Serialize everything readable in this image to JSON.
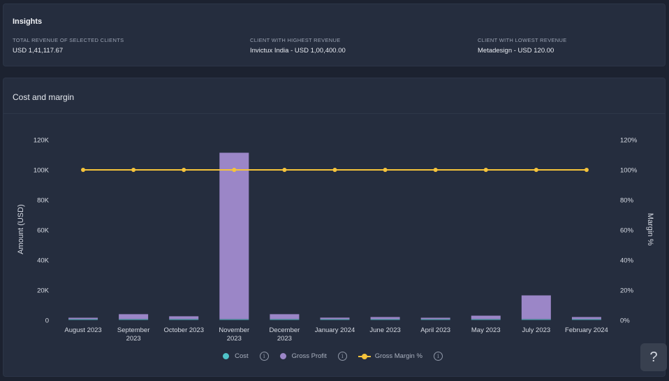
{
  "insights": {
    "title": "Insights",
    "metrics": [
      {
        "label": "TOTAL REVENUE OF SELECTED CLIENTS",
        "value": "USD 1,41,117.67"
      },
      {
        "label": "CLIENT WITH HIGHEST REVENUE",
        "value": "Invictux India - USD 1,00,400.00"
      },
      {
        "label": "CLIENT WITH LOWEST REVENUE",
        "value": "Metadesign - USD 120.00"
      }
    ]
  },
  "chart_card": {
    "title": "Cost and margin"
  },
  "legend": {
    "items": [
      {
        "label": "Cost",
        "icon": "circle",
        "color": "#4fc3c9"
      },
      {
        "label": "Gross Profit",
        "icon": "circle",
        "color": "#9b86c7"
      },
      {
        "label": "Gross Margin %",
        "icon": "line-dot",
        "color": "#f5c33b"
      }
    ],
    "info_symbol": "i"
  },
  "help_button": {
    "label": "?"
  },
  "chart_data": {
    "type": "bar",
    "title": "Cost and margin",
    "categories": [
      [
        "August 2023"
      ],
      [
        "September",
        "2023"
      ],
      [
        "October 2023"
      ],
      [
        "November",
        "2023"
      ],
      [
        "December",
        "2023"
      ],
      [
        "January 2024"
      ],
      [
        "June 2023"
      ],
      [
        "April 2023"
      ],
      [
        "May 2023"
      ],
      [
        "July 2023"
      ],
      [
        "February 2024"
      ]
    ],
    "category_names": [
      "August 2023",
      "September 2023",
      "October 2023",
      "November 2023",
      "December 2023",
      "January 2024",
      "June 2023",
      "April 2023",
      "May 2023",
      "July 2023",
      "February 2024"
    ],
    "series": [
      {
        "name": "Cost",
        "type": "bar",
        "axis": "left",
        "color": "#4fc3c9",
        "values": [
          0,
          0,
          0,
          0,
          0,
          0,
          0,
          0,
          0,
          0,
          0
        ]
      },
      {
        "name": "Gross Profit",
        "type": "bar",
        "axis": "left",
        "color": "#9b86c7",
        "values": [
          300,
          3300,
          1900,
          110700,
          3300,
          1000,
          1400,
          500,
          2300,
          15800,
          1400
        ]
      },
      {
        "name": "Gross Margin %",
        "type": "line",
        "axis": "right",
        "color": "#f5c33b",
        "values": [
          100,
          100,
          100,
          100,
          100,
          100,
          100,
          100,
          100,
          100,
          100
        ]
      }
    ],
    "ylabel": "Amount (USD)",
    "y2label": "Margin %",
    "ylim": [
      0,
      120000
    ],
    "y2lim": [
      0,
      120
    ],
    "yticks": [
      "0",
      "20K",
      "40K",
      "60K",
      "80K",
      "100K",
      "120K"
    ],
    "y2ticks": [
      "0%",
      "20%",
      "40%",
      "60%",
      "80%",
      "100%",
      "120%"
    ],
    "grid": false,
    "legend_position": "bottom"
  }
}
